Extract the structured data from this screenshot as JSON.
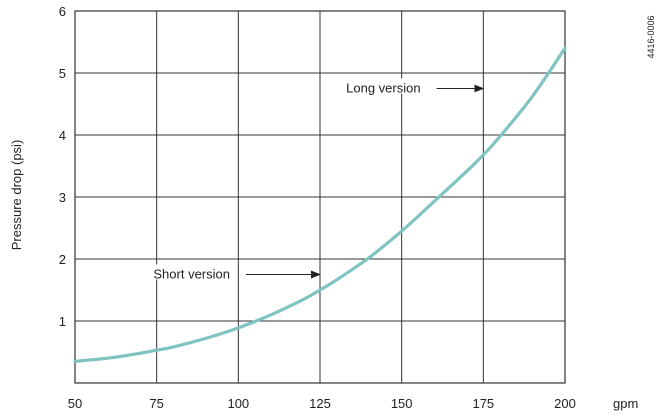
{
  "chart_data": {
    "type": "line",
    "ylabel": "Pressure drop (psi)",
    "x_unit_label": "gpm",
    "xlim": [
      50,
      200
    ],
    "ylim": [
      0,
      6
    ],
    "x_ticks": [
      50,
      75,
      100,
      125,
      150,
      175,
      200
    ],
    "y_ticks": [
      1,
      2,
      3,
      4,
      5,
      6
    ],
    "grid": true,
    "series": [
      {
        "color": "#7fc4c0",
        "x": [
          50,
          60,
          70,
          75,
          80,
          90,
          100,
          110,
          120,
          125,
          130,
          140,
          150,
          160,
          170,
          175,
          180,
          190,
          200
        ],
        "y": [
          0.35,
          0.4,
          0.48,
          0.53,
          0.58,
          0.72,
          0.89,
          1.1,
          1.35,
          1.5,
          1.66,
          2.02,
          2.45,
          2.93,
          3.42,
          3.68,
          3.97,
          4.62,
          5.4
        ]
      }
    ],
    "annotations": [
      {
        "text": "Long version",
        "x": 133,
        "y": 4.75,
        "arrow_to": [
          175,
          4.75
        ]
      },
      {
        "text": "Short version",
        "x": 74,
        "y": 1.75,
        "arrow_to": [
          125,
          1.75
        ]
      }
    ],
    "figure_id": "4416-0006"
  }
}
